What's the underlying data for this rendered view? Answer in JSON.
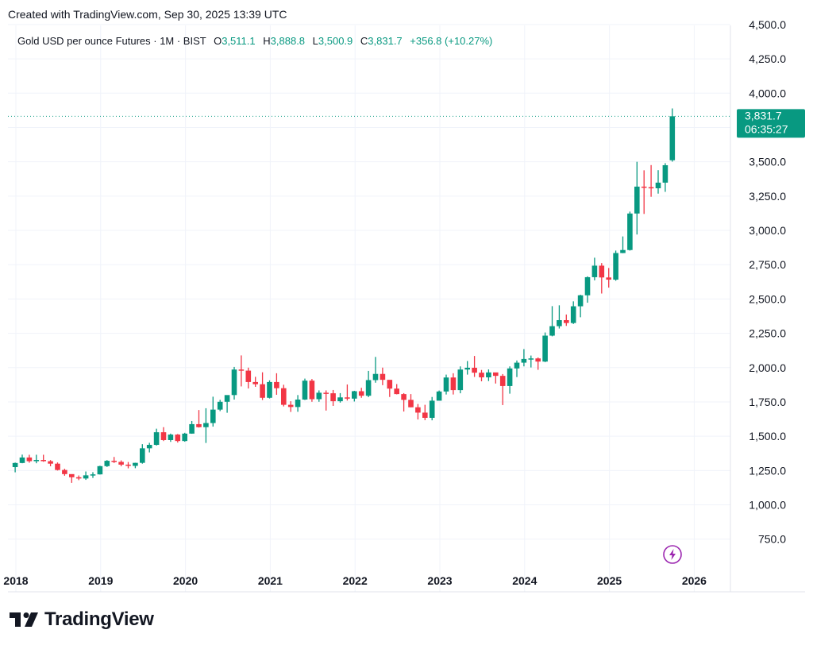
{
  "header": {
    "created": "Created with TradingView.com, Sep 30, 2025 13:39 UTC"
  },
  "legend": {
    "symbol": "Gold USD per ounce Futures · 1M · BIST",
    "o_key": "O",
    "o": "3,511.1",
    "h_key": "H",
    "h": "3,888.8",
    "l_key": "L",
    "l": "3,500.9",
    "c_key": "C",
    "c": "3,831.7",
    "change": "+356.8 (+10.27%)"
  },
  "price_tag": {
    "price": "3,831.7",
    "countdown": "06:35:27"
  },
  "brand": {
    "name": "TradingView"
  },
  "colors": {
    "up": "#089981",
    "down": "#f23645",
    "grid": "#f0f3fa",
    "accent_icon": "#9c27b0"
  },
  "icons": {
    "brand": "tradingview-logo-icon",
    "bolt": "lightning-icon"
  },
  "chart_data": {
    "type": "candlestick",
    "interval": "1M",
    "y_axis": {
      "ticks": [
        750,
        1000,
        1250,
        1500,
        1750,
        2000,
        2250,
        2500,
        2750,
        3000,
        3250,
        3500,
        3750,
        4000,
        4250,
        4500
      ],
      "tick_labels": [
        "750.0",
        "1,000.0",
        "1,250.0",
        "1,500.0",
        "1,750.0",
        "2,000.0",
        "2,250.0",
        "2,500.0",
        "2,750.0",
        "3,000.0",
        "3,250.0",
        "3,500.0",
        "3,750.0",
        "4,000.0",
        "4,250.0",
        "4,500.0"
      ],
      "range": [
        620,
        4500
      ],
      "position": "right"
    },
    "x_axis": {
      "ticks": [
        "2018",
        "2019",
        "2020",
        "2021",
        "2022",
        "2023",
        "2024",
        "2025",
        "2026"
      ],
      "range": [
        "2017-11",
        "2026-06"
      ]
    },
    "last_price": 3831.7,
    "candles": [
      {
        "t": "2017-12",
        "o": 1275,
        "h": 1308,
        "l": 1237,
        "c": 1305
      },
      {
        "t": "2018-01",
        "o": 1305,
        "h": 1366,
        "l": 1303,
        "c": 1345
      },
      {
        "t": "2018-02",
        "o": 1345,
        "h": 1365,
        "l": 1307,
        "c": 1318
      },
      {
        "t": "2018-03",
        "o": 1318,
        "h": 1365,
        "l": 1303,
        "c": 1327
      },
      {
        "t": "2018-04",
        "o": 1327,
        "h": 1365,
        "l": 1314,
        "c": 1318
      },
      {
        "t": "2018-05",
        "o": 1318,
        "h": 1326,
        "l": 1281,
        "c": 1300
      },
      {
        "t": "2018-06",
        "o": 1300,
        "h": 1309,
        "l": 1250,
        "c": 1254
      },
      {
        "t": "2018-07",
        "o": 1254,
        "h": 1263,
        "l": 1212,
        "c": 1224
      },
      {
        "t": "2018-08",
        "o": 1224,
        "h": 1218,
        "l": 1160,
        "c": 1201
      },
      {
        "t": "2018-09",
        "o": 1201,
        "h": 1214,
        "l": 1180,
        "c": 1192
      },
      {
        "t": "2018-10",
        "o": 1192,
        "h": 1243,
        "l": 1182,
        "c": 1215
      },
      {
        "t": "2018-11",
        "o": 1215,
        "h": 1238,
        "l": 1196,
        "c": 1222
      },
      {
        "t": "2018-12",
        "o": 1222,
        "h": 1285,
        "l": 1221,
        "c": 1282
      },
      {
        "t": "2019-01",
        "o": 1282,
        "h": 1326,
        "l": 1276,
        "c": 1321
      },
      {
        "t": "2019-02",
        "o": 1321,
        "h": 1349,
        "l": 1305,
        "c": 1313
      },
      {
        "t": "2019-03",
        "o": 1313,
        "h": 1324,
        "l": 1281,
        "c": 1293
      },
      {
        "t": "2019-04",
        "o": 1293,
        "h": 1312,
        "l": 1266,
        "c": 1284
      },
      {
        "t": "2019-05",
        "o": 1284,
        "h": 1307,
        "l": 1267,
        "c": 1306
      },
      {
        "t": "2019-06",
        "o": 1306,
        "h": 1442,
        "l": 1300,
        "c": 1412
      },
      {
        "t": "2019-07",
        "o": 1412,
        "h": 1452,
        "l": 1382,
        "c": 1437
      },
      {
        "t": "2019-08",
        "o": 1437,
        "h": 1555,
        "l": 1432,
        "c": 1529
      },
      {
        "t": "2019-09",
        "o": 1529,
        "h": 1566,
        "l": 1465,
        "c": 1472
      },
      {
        "t": "2019-10",
        "o": 1472,
        "h": 1519,
        "l": 1459,
        "c": 1512
      },
      {
        "t": "2019-11",
        "o": 1512,
        "h": 1516,
        "l": 1454,
        "c": 1465
      },
      {
        "t": "2019-12",
        "o": 1465,
        "h": 1525,
        "l": 1460,
        "c": 1519
      },
      {
        "t": "2020-01",
        "o": 1519,
        "h": 1611,
        "l": 1518,
        "c": 1588
      },
      {
        "t": "2020-02",
        "o": 1588,
        "h": 1691,
        "l": 1563,
        "c": 1566
      },
      {
        "t": "2020-03",
        "o": 1566,
        "h": 1704,
        "l": 1451,
        "c": 1596
      },
      {
        "t": "2020-04",
        "o": 1596,
        "h": 1788,
        "l": 1570,
        "c": 1694
      },
      {
        "t": "2020-05",
        "o": 1694,
        "h": 1765,
        "l": 1683,
        "c": 1751
      },
      {
        "t": "2020-06",
        "o": 1751,
        "h": 1796,
        "l": 1671,
        "c": 1800
      },
      {
        "t": "2020-07",
        "o": 1800,
        "h": 2005,
        "l": 1767,
        "c": 1986
      },
      {
        "t": "2020-08",
        "o": 1986,
        "h": 2089,
        "l": 1863,
        "c": 1978
      },
      {
        "t": "2020-09",
        "o": 1978,
        "h": 2000,
        "l": 1848,
        "c": 1895
      },
      {
        "t": "2020-10",
        "o": 1895,
        "h": 1933,
        "l": 1860,
        "c": 1879
      },
      {
        "t": "2020-11",
        "o": 1879,
        "h": 1966,
        "l": 1764,
        "c": 1780
      },
      {
        "t": "2020-12",
        "o": 1780,
        "h": 1907,
        "l": 1775,
        "c": 1895
      },
      {
        "t": "2021-01",
        "o": 1895,
        "h": 1959,
        "l": 1802,
        "c": 1850
      },
      {
        "t": "2021-02",
        "o": 1850,
        "h": 1875,
        "l": 1717,
        "c": 1729
      },
      {
        "t": "2021-03",
        "o": 1729,
        "h": 1755,
        "l": 1677,
        "c": 1713
      },
      {
        "t": "2021-04",
        "o": 1713,
        "h": 1800,
        "l": 1678,
        "c": 1767
      },
      {
        "t": "2021-05",
        "o": 1767,
        "h": 1920,
        "l": 1764,
        "c": 1905
      },
      {
        "t": "2021-06",
        "o": 1905,
        "h": 1917,
        "l": 1751,
        "c": 1770
      },
      {
        "t": "2021-07",
        "o": 1770,
        "h": 1834,
        "l": 1751,
        "c": 1817
      },
      {
        "t": "2021-08",
        "o": 1817,
        "h": 1834,
        "l": 1687,
        "c": 1813
      },
      {
        "t": "2021-09",
        "o": 1813,
        "h": 1837,
        "l": 1721,
        "c": 1755
      },
      {
        "t": "2021-10",
        "o": 1755,
        "h": 1814,
        "l": 1745,
        "c": 1783
      },
      {
        "t": "2021-11",
        "o": 1783,
        "h": 1877,
        "l": 1760,
        "c": 1774
      },
      {
        "t": "2021-12",
        "o": 1774,
        "h": 1831,
        "l": 1753,
        "c": 1828
      },
      {
        "t": "2022-01",
        "o": 1828,
        "h": 1853,
        "l": 1780,
        "c": 1795
      },
      {
        "t": "2022-02",
        "o": 1795,
        "h": 1976,
        "l": 1785,
        "c": 1909
      },
      {
        "t": "2022-03",
        "o": 1909,
        "h": 2078,
        "l": 1890,
        "c": 1954
      },
      {
        "t": "2022-04",
        "o": 1954,
        "h": 2000,
        "l": 1872,
        "c": 1911
      },
      {
        "t": "2022-05",
        "o": 1911,
        "h": 1909,
        "l": 1786,
        "c": 1847
      },
      {
        "t": "2022-06",
        "o": 1847,
        "h": 1880,
        "l": 1805,
        "c": 1807
      },
      {
        "t": "2022-07",
        "o": 1807,
        "h": 1814,
        "l": 1680,
        "c": 1765
      },
      {
        "t": "2022-08",
        "o": 1765,
        "h": 1807,
        "l": 1711,
        "c": 1711
      },
      {
        "t": "2022-09",
        "o": 1711,
        "h": 1735,
        "l": 1622,
        "c": 1672
      },
      {
        "t": "2022-10",
        "o": 1672,
        "h": 1729,
        "l": 1617,
        "c": 1634
      },
      {
        "t": "2022-11",
        "o": 1634,
        "h": 1786,
        "l": 1616,
        "c": 1759
      },
      {
        "t": "2022-12",
        "o": 1759,
        "h": 1833,
        "l": 1770,
        "c": 1826
      },
      {
        "t": "2023-01",
        "o": 1826,
        "h": 1949,
        "l": 1804,
        "c": 1928
      },
      {
        "t": "2023-02",
        "o": 1928,
        "h": 1959,
        "l": 1804,
        "c": 1836
      },
      {
        "t": "2023-03",
        "o": 1836,
        "h": 2009,
        "l": 1813,
        "c": 1986
      },
      {
        "t": "2023-04",
        "o": 1986,
        "h": 2048,
        "l": 1949,
        "c": 1999
      },
      {
        "t": "2023-05",
        "o": 1999,
        "h": 2085,
        "l": 1932,
        "c": 1963
      },
      {
        "t": "2023-06",
        "o": 1963,
        "h": 1983,
        "l": 1900,
        "c": 1929
      },
      {
        "t": "2023-07",
        "o": 1929,
        "h": 1987,
        "l": 1902,
        "c": 1965
      },
      {
        "t": "2023-08",
        "o": 1965,
        "h": 1949,
        "l": 1884,
        "c": 1940
      },
      {
        "t": "2023-09",
        "o": 1940,
        "h": 1953,
        "l": 1727,
        "c": 1866
      },
      {
        "t": "2023-10",
        "o": 1866,
        "h": 2009,
        "l": 1810,
        "c": 1994
      },
      {
        "t": "2023-11",
        "o": 1994,
        "h": 2052,
        "l": 1931,
        "c": 2036
      },
      {
        "t": "2023-12",
        "o": 2036,
        "h": 2135,
        "l": 2009,
        "c": 2063
      },
      {
        "t": "2024-01",
        "o": 2063,
        "h": 2088,
        "l": 2001,
        "c": 2067
      },
      {
        "t": "2024-02",
        "o": 2067,
        "h": 2074,
        "l": 1984,
        "c": 2044
      },
      {
        "t": "2024-03",
        "o": 2044,
        "h": 2256,
        "l": 2040,
        "c": 2233
      },
      {
        "t": "2024-04",
        "o": 2233,
        "h": 2448,
        "l": 2228,
        "c": 2302
      },
      {
        "t": "2024-05",
        "o": 2302,
        "h": 2454,
        "l": 2285,
        "c": 2346
      },
      {
        "t": "2024-06",
        "o": 2346,
        "h": 2387,
        "l": 2304,
        "c": 2325
      },
      {
        "t": "2024-07",
        "o": 2325,
        "h": 2483,
        "l": 2318,
        "c": 2447
      },
      {
        "t": "2024-08",
        "o": 2447,
        "h": 2531,
        "l": 2367,
        "c": 2527
      },
      {
        "t": "2024-09",
        "o": 2527,
        "h": 2665,
        "l": 2473,
        "c": 2659
      },
      {
        "t": "2024-10",
        "o": 2659,
        "h": 2801,
        "l": 2636,
        "c": 2743
      },
      {
        "t": "2024-11",
        "o": 2743,
        "h": 2762,
        "l": 2540,
        "c": 2657
      },
      {
        "t": "2024-12",
        "o": 2657,
        "h": 2726,
        "l": 2583,
        "c": 2641
      },
      {
        "t": "2025-01",
        "o": 2641,
        "h": 2853,
        "l": 2633,
        "c": 2835
      },
      {
        "t": "2025-02",
        "o": 2835,
        "h": 2956,
        "l": 2834,
        "c": 2857
      },
      {
        "t": "2025-03",
        "o": 2857,
        "h": 3137,
        "l": 2853,
        "c": 3123
      },
      {
        "t": "2025-04",
        "o": 3123,
        "h": 3500,
        "l": 2970,
        "c": 3319
      },
      {
        "t": "2025-05",
        "o": 3319,
        "h": 3438,
        "l": 3120,
        "c": 3315
      },
      {
        "t": "2025-06",
        "o": 3315,
        "h": 3476,
        "l": 3245,
        "c": 3307
      },
      {
        "t": "2025-07",
        "o": 3307,
        "h": 3439,
        "l": 3268,
        "c": 3348
      },
      {
        "t": "2025-08",
        "o": 3348,
        "h": 3490,
        "l": 3281,
        "c": 3475
      },
      {
        "t": "2025-09",
        "o": 3511.1,
        "h": 3888.8,
        "l": 3500.9,
        "c": 3831.7
      }
    ]
  }
}
